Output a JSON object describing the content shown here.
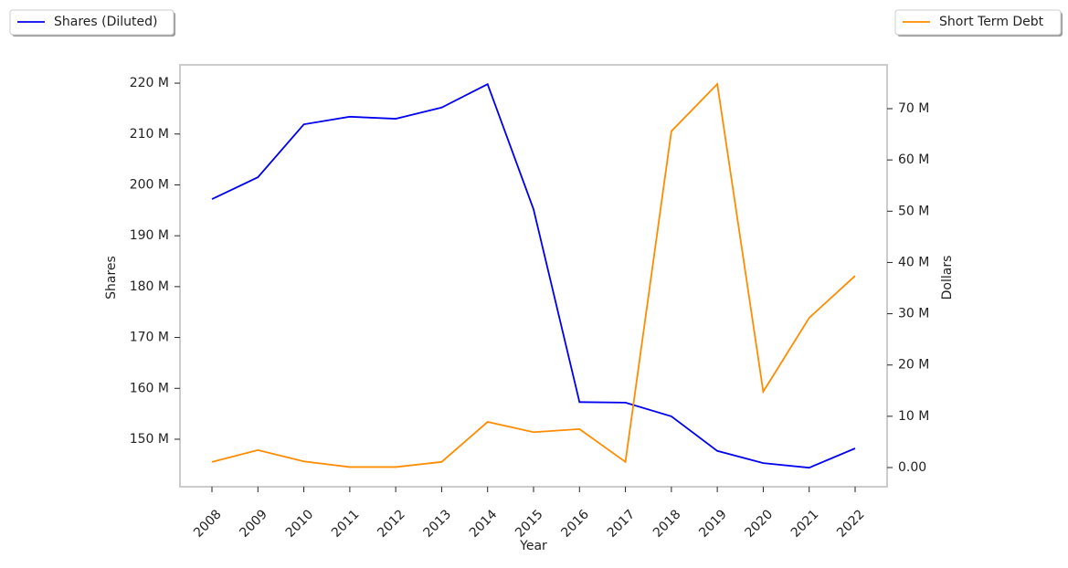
{
  "chart_data": {
    "type": "line",
    "x_label": "Year",
    "y_label": "Shares",
    "y2_label": "Dollars",
    "categories": [
      "2008",
      "2009",
      "2010",
      "2011",
      "2012",
      "2013",
      "2014",
      "2015",
      "2016",
      "2017",
      "2018",
      "2019",
      "2020",
      "2021",
      "2022"
    ],
    "series": [
      {
        "name": "Shares (Diluted)",
        "color": "#0000ee",
        "axis": "y",
        "values": [
          197200000,
          201500000,
          211900000,
          213400000,
          213000000,
          215200000,
          219800000,
          195200000,
          157300000,
          157200000,
          154500000,
          147700000,
          145300000,
          144400000,
          148200000
        ]
      },
      {
        "name": "Short Term Debt",
        "color": "#ff8c00",
        "axis": "y2",
        "values": [
          1100000,
          3400000,
          1200000,
          100000,
          100000,
          1100000,
          8900000,
          6900000,
          7500000,
          1100000,
          65600000,
          74800000,
          14800000,
          29200000,
          37400000
        ]
      }
    ],
    "ylim": [
      140660000,
      223600000
    ],
    "yticks": [
      {
        "value": 150000000,
        "label": "150 M"
      },
      {
        "value": 160000000,
        "label": "160 M"
      },
      {
        "value": 170000000,
        "label": "170 M"
      },
      {
        "value": 180000000,
        "label": "180 M"
      },
      {
        "value": 190000000,
        "label": "190 M"
      },
      {
        "value": 200000000,
        "label": "200 M"
      },
      {
        "value": 210000000,
        "label": "210 M"
      },
      {
        "value": 220000000,
        "label": "220 M"
      }
    ],
    "y2lim": [
      -3740000,
      78550000
    ],
    "y2ticks": [
      {
        "value": 0,
        "label": "0.00"
      },
      {
        "value": 10000000,
        "label": "10 M"
      },
      {
        "value": 20000000,
        "label": "20 M"
      },
      {
        "value": 30000000,
        "label": "30 M"
      },
      {
        "value": 40000000,
        "label": "40 M"
      },
      {
        "value": 50000000,
        "label": "50 M"
      },
      {
        "value": 60000000,
        "label": "60 M"
      },
      {
        "value": 70000000,
        "label": "70 M"
      }
    ],
    "grid": false
  }
}
